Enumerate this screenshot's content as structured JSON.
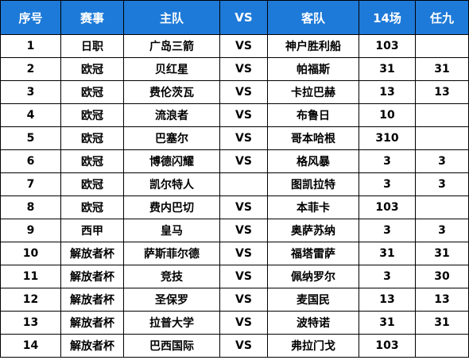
{
  "colors": {
    "header_bg": "#1e7ad8",
    "header_text": "#ffffff",
    "grid_line": "#000000"
  },
  "columns": [
    "序号",
    "赛事",
    "主队",
    "VS",
    "客队",
    "14场",
    "任九"
  ],
  "rows": [
    {
      "no": "1",
      "league": "日职",
      "home": "广岛三箭",
      "vs": "VS",
      "away": "神户胜利船",
      "f14": "103",
      "r9": ""
    },
    {
      "no": "2",
      "league": "欧冠",
      "home": "贝红星",
      "vs": "VS",
      "away": "帕福斯",
      "f14": "31",
      "r9": "31"
    },
    {
      "no": "3",
      "league": "欧冠",
      "home": "费伦茨瓦",
      "vs": "VS",
      "away": "卡拉巴赫",
      "f14": "13",
      "r9": "13"
    },
    {
      "no": "4",
      "league": "欧冠",
      "home": "流浪者",
      "vs": "VS",
      "away": "布鲁日",
      "f14": "10",
      "r9": ""
    },
    {
      "no": "5",
      "league": "欧冠",
      "home": "巴塞尔",
      "vs": "VS",
      "away": "哥本哈根",
      "f14": "310",
      "r9": ""
    },
    {
      "no": "6",
      "league": "欧冠",
      "home": "博德闪耀",
      "vs": "VS",
      "away": "格风暴",
      "f14": "3",
      "r9": "3"
    },
    {
      "no": "7",
      "league": "欧冠",
      "home": "凯尔特人",
      "vs": "",
      "away": "图凯拉特",
      "f14": "3",
      "r9": "3"
    },
    {
      "no": "8",
      "league": "欧冠",
      "home": "费内巴切",
      "vs": "VS",
      "away": "本菲卡",
      "f14": "103",
      "r9": ""
    },
    {
      "no": "9",
      "league": "西甲",
      "home": "皇马",
      "vs": "VS",
      "away": "奥萨苏纳",
      "f14": "3",
      "r9": "3"
    },
    {
      "no": "10",
      "league": "解放者杯",
      "home": "萨斯菲尔德",
      "vs": "VS",
      "away": "福塔雷萨",
      "f14": "31",
      "r9": "31"
    },
    {
      "no": "11",
      "league": "解放者杯",
      "home": "竞技",
      "vs": "VS",
      "away": "佩纳罗尔",
      "f14": "3",
      "r9": "30"
    },
    {
      "no": "12",
      "league": "解放者杯",
      "home": "圣保罗",
      "vs": "VS",
      "away": "麦国民",
      "f14": "13",
      "r9": "13"
    },
    {
      "no": "13",
      "league": "解放者杯",
      "home": "拉普大学",
      "vs": "VS",
      "away": "波特诺",
      "f14": "31",
      "r9": "31"
    },
    {
      "no": "14",
      "league": "解放者杯",
      "home": "巴西国际",
      "vs": "VS",
      "away": "弗拉门戈",
      "f14": "103",
      "r9": ""
    }
  ]
}
